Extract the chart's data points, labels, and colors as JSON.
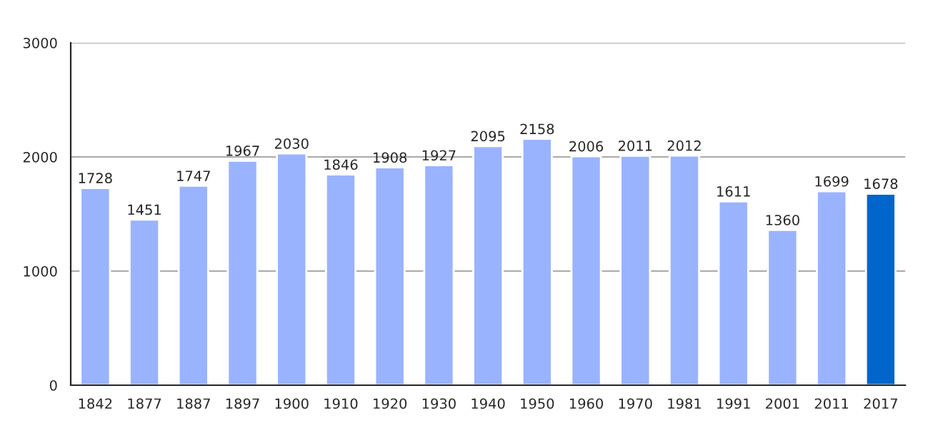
{
  "chart_data": {
    "type": "bar",
    "categories": [
      "1842",
      "1877",
      "1887",
      "1897",
      "1900",
      "1910",
      "1920",
      "1930",
      "1940",
      "1950",
      "1960",
      "1970",
      "1981",
      "1991",
      "2001",
      "2011",
      "2017"
    ],
    "values": [
      1728,
      1451,
      1747,
      1967,
      2030,
      1846,
      1908,
      1927,
      2095,
      2158,
      2006,
      2011,
      2012,
      1611,
      1360,
      1699,
      1678
    ],
    "colors": [
      "#99b3ff",
      "#99b3ff",
      "#99b3ff",
      "#99b3ff",
      "#99b3ff",
      "#99b3ff",
      "#99b3ff",
      "#99b3ff",
      "#99b3ff",
      "#99b3ff",
      "#99b3ff",
      "#99b3ff",
      "#99b3ff",
      "#99b3ff",
      "#99b3ff",
      "#99b3ff",
      "#0066cc"
    ],
    "ylim": [
      0,
      3000
    ],
    "yticks": [
      0,
      1000,
      2000,
      3000
    ],
    "grid": "y",
    "data_labels": true
  }
}
